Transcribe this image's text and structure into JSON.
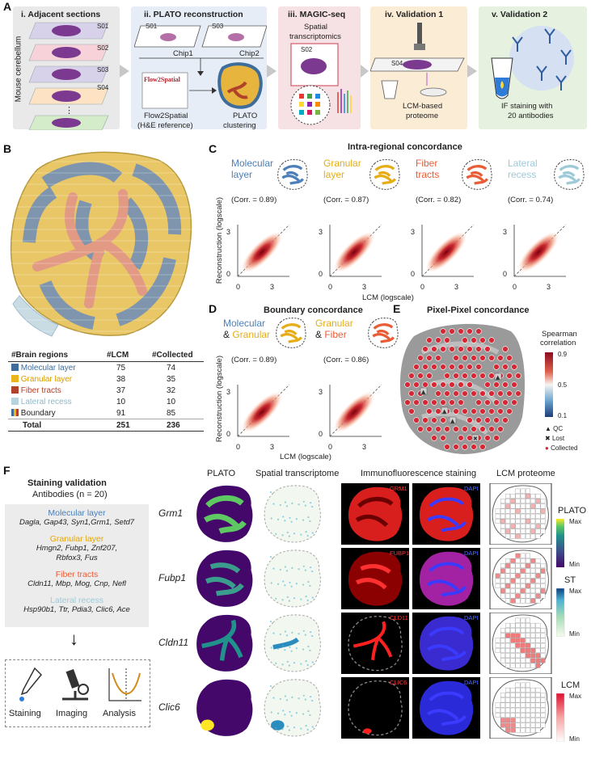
{
  "panel_letters": {
    "a": "A",
    "b": "B",
    "c": "C",
    "d": "D",
    "e": "E",
    "f": "F"
  },
  "panelA": {
    "steps": [
      {
        "title": "i. Adjacent sections",
        "color": "#e9e9e9"
      },
      {
        "title": "ii. PLATO reconstruction",
        "color": "#e7edf6"
      },
      {
        "title": "iii. MAGIC-seq",
        "color": "#f6e1e4"
      },
      {
        "title": "iv. Validation 1",
        "color": "#fbecd6"
      },
      {
        "title": "v. Validation 2",
        "color": "#e6f1df"
      }
    ],
    "side_label": "Mouse cerebellum",
    "sections": [
      "S01",
      "S02",
      "S03",
      "S04"
    ],
    "ellipsis": "⋮",
    "chip1_section": "S01",
    "chip2_section": "S03",
    "chip1": "Chip1",
    "chip2": "Chip2",
    "flow2spatial_logo": "Flow2Spatial",
    "flow2spatial_caption_1": "Flow2Spatial",
    "flow2spatial_caption_2": "(H&E reference)",
    "plato_caption_1": "PLATO",
    "plato_caption_2": "clustering",
    "st_label_1": "Spatial",
    "st_label_2": "transcriptomics",
    "magic_section": "S02",
    "lcm_section": "S04",
    "lcm_caption_1": "LCM-based",
    "lcm_caption_2": "proteome",
    "if_caption_1": "IF staining with",
    "if_caption_2": "20 antibodies"
  },
  "panelB": {
    "headers": [
      "#Brain regions",
      "#LCM",
      "#Collected"
    ],
    "rows": [
      {
        "name": "Molecular layer",
        "lcm": "75",
        "collected": "74",
        "color": "#3e6d9c",
        "text_color": "#3e6d9c"
      },
      {
        "name": "Granular layer",
        "lcm": "38",
        "collected": "35",
        "color": "#e9b51a",
        "text_color": "#d79b00"
      },
      {
        "name": "Fiber tracts",
        "lcm": "37",
        "collected": "32",
        "color": "#b0412a",
        "text_color": "#b0412a"
      },
      {
        "name": "Lateral recess",
        "lcm": "10",
        "collected": "10",
        "color": "#b7d3de",
        "text_color": "#8fb8c6"
      },
      {
        "name": "Boundary",
        "lcm": "91",
        "collected": "85",
        "color": "multi",
        "text_color": "#222"
      }
    ],
    "total": {
      "name": "Total",
      "lcm": "251",
      "collected": "236"
    }
  },
  "panelC": {
    "title": "Intra-regional concordance",
    "ylabel": "Reconstruction (logscale)",
    "xlabel": "LCM (logscale)",
    "plots": [
      {
        "region_1": "Molecular",
        "region_2": "layer",
        "color": "#4d7fb8",
        "corr": "(Corr. = 0.89)"
      },
      {
        "region_1": "Granular",
        "region_2": "layer",
        "color": "#e6ad17",
        "corr": "(Corr. = 0.87)"
      },
      {
        "region_1": "Fiber",
        "region_2": "tracts",
        "color": "#e85d36",
        "corr": "(Corr. = 0.82)"
      },
      {
        "region_1": "Lateral",
        "region_2": "recess",
        "color": "#9ecad8",
        "corr": "(Corr. = 0.74)"
      }
    ],
    "ticks": {
      "x0": "0",
      "x3": "3",
      "y0": "0",
      "y3": "3"
    }
  },
  "panelD": {
    "title": "Boundary concordance",
    "ylabel": "Reconstruction (logscale)",
    "xlabel": "LCM (logscale)",
    "plots": [
      {
        "region_1": "Molecular",
        "amp": "& ",
        "region_2": "Granular",
        "c1": "#4d7fb8",
        "c2": "#e6ad17",
        "corr": "(Corr. = 0.89)"
      },
      {
        "region_1": "Granular",
        "amp": "& ",
        "region_2": "Fiber",
        "c1": "#e6ad17",
        "c2": "#e85d36",
        "corr": "(Corr. = 0.86)"
      }
    ],
    "ticks": {
      "x0": "0",
      "x3": "3",
      "y0": "0",
      "y3": "3"
    }
  },
  "panelE": {
    "title": "Pixel-Pixel concordance",
    "legend_title_1": "Spearman",
    "legend_title_2": "correlation",
    "scale": [
      "0.9",
      "0.5",
      "0.1"
    ],
    "qc": "QC",
    "lost": "Lost",
    "collected": "Collected",
    "qc_symbol": "▲",
    "lost_symbol": "✖",
    "collected_symbol": "●"
  },
  "panelF": {
    "staining_title": "Staining validation",
    "antibodies": "Antibodies (n = 20)",
    "groups": [
      {
        "name": "Molecular layer",
        "color": "#4d7fb8",
        "genes_1": "Dagla, Gap43, Syn1,Grm1, Setd7",
        "genes_2": ""
      },
      {
        "name": "Granular layer",
        "color": "#e6a400",
        "genes_1": "Hmgn2, Fubp1, Znf207,",
        "genes_2": "Rbfox3, Fus"
      },
      {
        "name": "Fiber tracts",
        "color": "#e85d36",
        "genes_1": "Cldn11, Mbp, Mog, Cnp, Nefl",
        "genes_2": ""
      },
      {
        "name": "Lateral recess",
        "color": "#9ecad8",
        "genes_1": "Hsp90b1, Ttr, Pdia3, Clic6, Ace",
        "genes_2": ""
      }
    ],
    "arrow": "↓",
    "workflow": [
      "Staining",
      "Imaging",
      "Analysis"
    ],
    "columns": [
      "PLATO",
      "Spatial transcriptome",
      "Immunofluorescence staining",
      "LCM proteome"
    ],
    "genes": [
      "Grm1",
      "Fubp1",
      "Cldn11",
      "Clic6"
    ],
    "if_labels": [
      "GRM1",
      "FUBP1",
      "CLD11",
      "CLIC6"
    ],
    "dapi": "DAPI",
    "legends": [
      {
        "title": "PLATO",
        "max": "Max",
        "min": "Min"
      },
      {
        "title": "ST",
        "max": "Max",
        "min": "Min"
      },
      {
        "title": "LCM",
        "max": "Max",
        "min": "Min"
      }
    ]
  }
}
